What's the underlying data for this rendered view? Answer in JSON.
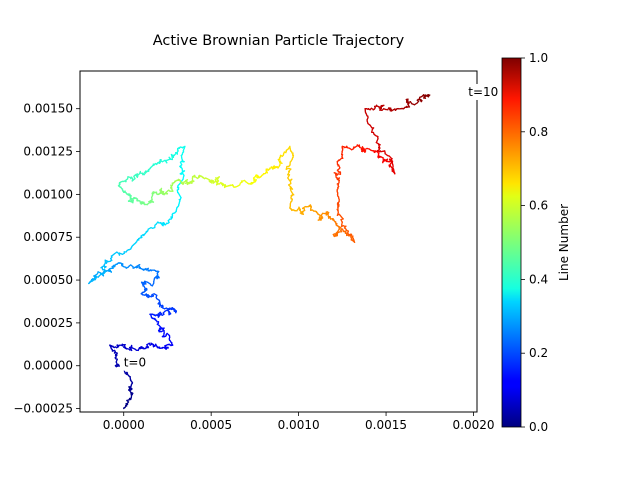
{
  "chart_data": {
    "type": "line",
    "title": "Active Brownian Particle Trajectory",
    "xlabel": "",
    "ylabel": "",
    "xlim": [
      -0.00025,
      0.00202
    ],
    "ylim": [
      -0.00027,
      0.00172
    ],
    "x_ticks": [
      0.0,
      0.0005,
      0.001,
      0.0015,
      0.002
    ],
    "x_tick_labels": [
      "0.0000",
      "0.0005",
      "0.0010",
      "0.0015",
      "0.0020"
    ],
    "y_ticks": [
      -0.00025,
      0.0,
      0.00025,
      0.0005,
      0.00075,
      0.001,
      0.00125,
      0.0015
    ],
    "y_tick_labels": [
      "−0.00025",
      "0.00000",
      "0.00025",
      "0.00050",
      "0.00075",
      "0.00100",
      "0.00125",
      "0.00150"
    ],
    "colormap": "jet",
    "colorbar": {
      "label": "Line Number",
      "range": [
        0.0,
        1.0
      ],
      "ticks": [
        0.0,
        0.2,
        0.4,
        0.6,
        0.8,
        1.0
      ],
      "tick_labels": [
        "0.0",
        "0.2",
        "0.4",
        "0.6",
        "0.8",
        "1.0"
      ]
    },
    "annotations": [
      {
        "text": "t=0",
        "x": 0.0,
        "y": 0.0
      },
      {
        "text": "t=10",
        "x": 0.00197,
        "y": 0.00158
      }
    ],
    "grid": false,
    "waypoints": [
      {
        "t": 0.0,
        "x": 0.0,
        "y": -0.00025
      },
      {
        "t": 0.03,
        "x": 5e-05,
        "y": -0.0001
      },
      {
        "t": 0.06,
        "x": -8e-05,
        "y": 0.00012
      },
      {
        "t": 0.09,
        "x": 0.00012,
        "y": 0.0001
      },
      {
        "t": 0.12,
        "x": 0.00028,
        "y": 0.00012
      },
      {
        "t": 0.15,
        "x": 0.00015,
        "y": 0.0003
      },
      {
        "t": 0.18,
        "x": 0.0003,
        "y": 0.00032
      },
      {
        "t": 0.21,
        "x": 0.0001,
        "y": 0.00042
      },
      {
        "t": 0.24,
        "x": 0.0002,
        "y": 0.00055
      },
      {
        "t": 0.27,
        "x": -3e-05,
        "y": 0.0006
      },
      {
        "t": 0.3,
        "x": -0.0002,
        "y": 0.00048
      },
      {
        "t": 0.33,
        "x": 5e-05,
        "y": 0.0007
      },
      {
        "t": 0.36,
        "x": 0.0003,
        "y": 0.0009
      },
      {
        "t": 0.39,
        "x": 0.00035,
        "y": 0.00128
      },
      {
        "t": 0.42,
        "x": 0.00015,
        "y": 0.00115
      },
      {
        "t": 0.45,
        "x": -3e-05,
        "y": 0.00105
      },
      {
        "t": 0.48,
        "x": 0.0001,
        "y": 0.00095
      },
      {
        "t": 0.51,
        "x": 0.0002,
        "y": 0.001
      },
      {
        "t": 0.54,
        "x": 0.0003,
        "y": 0.00108
      },
      {
        "t": 0.57,
        "x": 0.00045,
        "y": 0.0011
      },
      {
        "t": 0.6,
        "x": 0.0006,
        "y": 0.00105
      },
      {
        "t": 0.63,
        "x": 0.00078,
        "y": 0.0011
      },
      {
        "t": 0.66,
        "x": 0.00095,
        "y": 0.00128
      },
      {
        "t": 0.69,
        "x": 0.00095,
        "y": 0.00092
      },
      {
        "t": 0.72,
        "x": 0.0011,
        "y": 0.0009
      },
      {
        "t": 0.75,
        "x": 0.0012,
        "y": 0.00085
      },
      {
        "t": 0.78,
        "x": 0.00132,
        "y": 0.00072
      },
      {
        "t": 0.81,
        "x": 0.00122,
        "y": 0.00102
      },
      {
        "t": 0.84,
        "x": 0.00125,
        "y": 0.00128
      },
      {
        "t": 0.87,
        "x": 0.00145,
        "y": 0.00125
      },
      {
        "t": 0.9,
        "x": 0.00155,
        "y": 0.00112
      },
      {
        "t": 0.93,
        "x": 0.00138,
        "y": 0.0015
      },
      {
        "t": 0.96,
        "x": 0.0016,
        "y": 0.0015
      },
      {
        "t": 1.0,
        "x": 0.00175,
        "y": 0.00158
      }
    ]
  }
}
